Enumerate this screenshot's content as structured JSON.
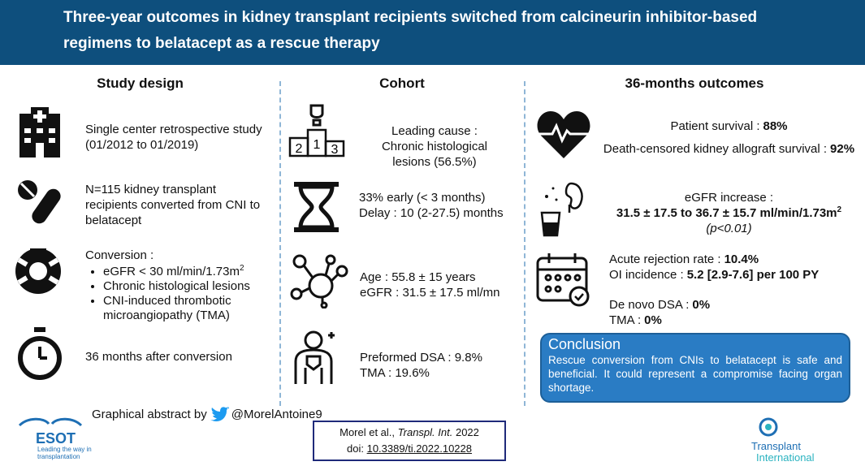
{
  "header": {
    "title_lines": [
      "Three-year outcomes in kidney transplant recipients switched from calcineurin inhibitor-based",
      "regimens to belatacept as a rescue therapy"
    ]
  },
  "study_design": {
    "heading": "Study design",
    "item1": "Single center retrospective study (01/2012 to 01/2019)",
    "item2": "N=115 kidney transplant recipients converted from CNI to belatacept",
    "item3": {
      "label": "Conversion :",
      "bullets": [
        {
          "text": "eGFR < 30 ml/min/1.73m",
          "sup": "2"
        },
        {
          "text": "Chronic histological lesions"
        },
        {
          "text": "CNI-induced thrombotic microangiopathy (TMA)"
        }
      ]
    },
    "item4": "36 months after conversion"
  },
  "cohort": {
    "heading": "Cohort",
    "podium_labels": [
      "2",
      "1",
      "3"
    ],
    "cause": [
      "Leading cause :",
      "Chronic histological",
      "lesions (56.5%)"
    ],
    "timing": [
      "33% early (< 3 months)",
      "Delay : 10 (2-27.5) months"
    ],
    "age": [
      "Age : 55.8 ± 15 years",
      "eGFR  : 31.5 ± 17.5 ml/mn"
    ],
    "dsa": [
      "Preformed DSA : 9.8%",
      "TMA : 19.6%"
    ]
  },
  "outcomes": {
    "heading": "36-months outcomes",
    "survival": [
      {
        "label": "Patient survival :",
        "value": "88%"
      },
      {
        "label": "Death-censored kidney allograft survival :",
        "value": "92%"
      }
    ],
    "egfr": {
      "label": "eGFR increase :",
      "value": "31.5 ± 17.5 to 36.7 ± 15.7 ml/min/1.73m",
      "sup": "2",
      "p": "(p<0.01)"
    },
    "rejection": [
      {
        "label": "Acute rejection rate :",
        "value": "10.4%"
      },
      {
        "label": "OI incidence :",
        "value": "5.2 [2.9-7.6] per 100 PY"
      }
    ],
    "dsa": [
      {
        "label": "De novo DSA :",
        "value": "0%"
      },
      {
        "label": "TMA :",
        "value": "0%"
      }
    ]
  },
  "conclusion": {
    "title": "Conclusion",
    "text": "Rescue conversion from CNIs to belatacept is safe and beneficial. It could represent a compromise facing organ shortage."
  },
  "footer": {
    "credit": "Graphical abstract by",
    "handle": "@MorelAntoine9",
    "citation": {
      "authors": "Morel et al.,",
      "journal": "Transpl. Int.",
      "year": "2022",
      "doi_label": "doi:",
      "doi": "10.3389/ti.2022.10228"
    },
    "esot": {
      "name": "ESOT",
      "tagline": "Leading the way in transplantation"
    },
    "ti": {
      "line1": "Transplant",
      "line2": "International"
    }
  }
}
